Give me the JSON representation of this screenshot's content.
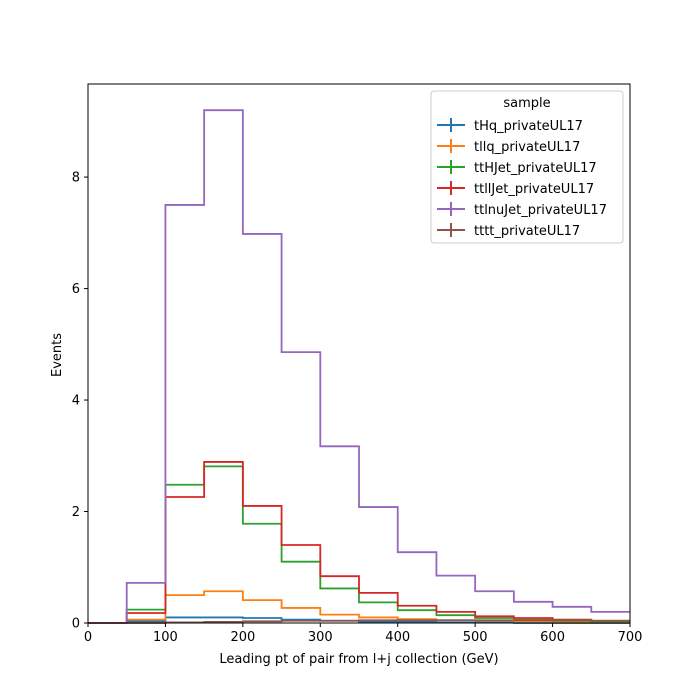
{
  "chart_data": {
    "type": "histogram-step",
    "xlabel": "Leading pt of pair from l+j collection (GeV)",
    "ylabel": "Events",
    "xlim": [
      0,
      700
    ],
    "ylim": [
      0,
      9.67
    ],
    "x_ticks": [
      0,
      100,
      200,
      300,
      400,
      500,
      600,
      700
    ],
    "y_ticks": [
      0,
      2,
      4,
      6,
      8
    ],
    "grid": false,
    "bin_edges": [
      0,
      50,
      100,
      150,
      200,
      250,
      300,
      350,
      400,
      450,
      500,
      550,
      600,
      650,
      700
    ],
    "legend": {
      "title": "sample",
      "placement": "upper right"
    },
    "series": [
      {
        "name": "tHq_privateUL17",
        "color": "#1f77b4",
        "values": [
          0,
          0.03,
          0.1,
          0.1,
          0.09,
          0.06,
          0.04,
          0.02,
          0.02,
          0.01,
          0.01,
          0.0,
          0.0,
          0.0
        ]
      },
      {
        "name": "tllq_privateUL17",
        "color": "#ff7f0e",
        "values": [
          0,
          0.06,
          0.5,
          0.57,
          0.41,
          0.27,
          0.15,
          0.1,
          0.07,
          0.05,
          0.04,
          0.03,
          0.02,
          0.01
        ]
      },
      {
        "name": "ttHJet_privateUL17",
        "color": "#2ca02c",
        "values": [
          0,
          0.24,
          2.48,
          2.81,
          1.78,
          1.1,
          0.62,
          0.37,
          0.23,
          0.14,
          0.09,
          0.06,
          0.04,
          0.03
        ]
      },
      {
        "name": "ttllJet_privateUL17",
        "color": "#d62728",
        "values": [
          0,
          0.18,
          2.26,
          2.89,
          2.1,
          1.4,
          0.84,
          0.54,
          0.31,
          0.2,
          0.12,
          0.09,
          0.06,
          0.04
        ]
      },
      {
        "name": "ttlnuJet_privateUL17",
        "color": "#9467bd",
        "values": [
          0,
          0.72,
          7.5,
          9.2,
          6.98,
          4.86,
          3.17,
          2.08,
          1.27,
          0.85,
          0.57,
          0.38,
          0.29,
          0.2
        ]
      },
      {
        "name": "tttt_privateUL17",
        "color": "#8c564b",
        "values": [
          0,
          0.0,
          0.01,
          0.02,
          0.03,
          0.04,
          0.04,
          0.05,
          0.05,
          0.05,
          0.05,
          0.05,
          0.05,
          0.04
        ]
      }
    ]
  }
}
